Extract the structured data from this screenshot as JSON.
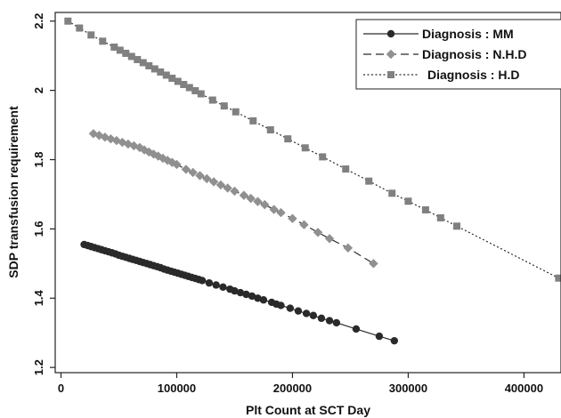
{
  "chart_data": {
    "type": "line",
    "title": "",
    "xlabel": "Plt Count at SCT Day",
    "ylabel": "SDP transfusion requirement",
    "xlim": [
      -5000,
      432000
    ],
    "ylim": [
      1.185,
      2.225
    ],
    "x_ticks": [
      0,
      100000,
      200000,
      300000,
      400000
    ],
    "x_tick_labels": [
      "0",
      "100000",
      "200000",
      "300000",
      "400000"
    ],
    "y_ticks": [
      1.2,
      1.4,
      1.6,
      1.8,
      2.0,
      2.2
    ],
    "y_tick_labels": [
      "1.2",
      "1.4",
      "1.6",
      "1.8",
      "2",
      "2.2"
    ],
    "grid": false,
    "legend_position": "top-right",
    "series": [
      {
        "name": "Diagnosis : MM",
        "marker": "circle",
        "line_style": "solid",
        "color": "#2a2a2a",
        "points": [
          [
            20000,
            1.555
          ],
          [
            23000,
            1.552
          ],
          [
            26000,
            1.549
          ],
          [
            29000,
            1.546
          ],
          [
            32000,
            1.543
          ],
          [
            35000,
            1.54
          ],
          [
            38000,
            1.537
          ],
          [
            41000,
            1.534
          ],
          [
            44000,
            1.531
          ],
          [
            47000,
            1.528
          ],
          [
            50000,
            1.524
          ],
          [
            53000,
            1.521
          ],
          [
            56000,
            1.518
          ],
          [
            59000,
            1.515
          ],
          [
            62000,
            1.512
          ],
          [
            65000,
            1.509
          ],
          [
            68000,
            1.506
          ],
          [
            71000,
            1.503
          ],
          [
            74000,
            1.5
          ],
          [
            77000,
            1.497
          ],
          [
            80000,
            1.494
          ],
          [
            83000,
            1.491
          ],
          [
            86000,
            1.488
          ],
          [
            89000,
            1.484
          ],
          [
            92000,
            1.481
          ],
          [
            95000,
            1.478
          ],
          [
            98000,
            1.475
          ],
          [
            101000,
            1.472
          ],
          [
            104000,
            1.469
          ],
          [
            107000,
            1.466
          ],
          [
            110000,
            1.463
          ],
          [
            113000,
            1.46
          ],
          [
            116000,
            1.457
          ],
          [
            119000,
            1.454
          ],
          [
            122000,
            1.451
          ],
          [
            128000,
            1.444
          ],
          [
            134000,
            1.438
          ],
          [
            140000,
            1.432
          ],
          [
            146000,
            1.426
          ],
          [
            150000,
            1.421
          ],
          [
            155000,
            1.416
          ],
          [
            160000,
            1.411
          ],
          [
            165000,
            1.406
          ],
          [
            170000,
            1.4
          ],
          [
            175000,
            1.395
          ],
          [
            182000,
            1.388
          ],
          [
            186000,
            1.383
          ],
          [
            190000,
            1.379
          ],
          [
            198000,
            1.371
          ],
          [
            205000,
            1.363
          ],
          [
            212000,
            1.356
          ],
          [
            218000,
            1.35
          ],
          [
            225000,
            1.342
          ],
          [
            232000,
            1.335
          ],
          [
            238000,
            1.329
          ],
          [
            255000,
            1.311
          ],
          [
            275000,
            1.29
          ],
          [
            288000,
            1.277
          ]
        ]
      },
      {
        "name": "Diagnosis : N.H.D",
        "marker": "diamond",
        "line_style": "dashed",
        "color": "#909090",
        "points": [
          [
            28000,
            1.875
          ],
          [
            33000,
            1.87
          ],
          [
            38000,
            1.865
          ],
          [
            43000,
            1.86
          ],
          [
            48000,
            1.855
          ],
          [
            53000,
            1.85
          ],
          [
            58000,
            1.845
          ],
          [
            63000,
            1.84
          ],
          [
            68000,
            1.835
          ],
          [
            72000,
            1.828
          ],
          [
            76000,
            1.822
          ],
          [
            80000,
            1.816
          ],
          [
            84000,
            1.81
          ],
          [
            88000,
            1.804
          ],
          [
            92000,
            1.798
          ],
          [
            96000,
            1.792
          ],
          [
            100000,
            1.786
          ],
          [
            108000,
            1.772
          ],
          [
            114000,
            1.763
          ],
          [
            120000,
            1.754
          ],
          [
            126000,
            1.745
          ],
          [
            132000,
            1.736
          ],
          [
            138000,
            1.727
          ],
          [
            144000,
            1.718
          ],
          [
            150000,
            1.709
          ],
          [
            158000,
            1.697
          ],
          [
            164000,
            1.688
          ],
          [
            170000,
            1.679
          ],
          [
            176000,
            1.67
          ],
          [
            184000,
            1.656
          ],
          [
            190000,
            1.647
          ],
          [
            200000,
            1.63
          ],
          [
            210000,
            1.612
          ],
          [
            222000,
            1.59
          ],
          [
            232000,
            1.572
          ],
          [
            248000,
            1.545
          ],
          [
            270000,
            1.5
          ]
        ]
      },
      {
        "name": "Diagnosis : H.D",
        "marker": "square",
        "line_style": "dotted",
        "color": "#808080",
        "points": [
          [
            6000,
            2.2
          ],
          [
            16000,
            2.18
          ],
          [
            26000,
            2.16
          ],
          [
            36000,
            2.142
          ],
          [
            46000,
            2.125
          ],
          [
            51000,
            2.116
          ],
          [
            56000,
            2.107
          ],
          [
            61000,
            2.098
          ],
          [
            66000,
            2.089
          ],
          [
            71000,
            2.08
          ],
          [
            76000,
            2.071
          ],
          [
            81000,
            2.062
          ],
          [
            86000,
            2.053
          ],
          [
            91000,
            2.044
          ],
          [
            96000,
            2.035
          ],
          [
            101000,
            2.026
          ],
          [
            106000,
            2.017
          ],
          [
            111000,
            2.008
          ],
          [
            116000,
            1.999
          ],
          [
            121000,
            1.99
          ],
          [
            131000,
            1.972
          ],
          [
            141000,
            1.955
          ],
          [
            151000,
            1.938
          ],
          [
            166000,
            1.912
          ],
          [
            181000,
            1.886
          ],
          [
            196000,
            1.86
          ],
          [
            211000,
            1.834
          ],
          [
            226000,
            1.808
          ],
          [
            246000,
            1.773
          ],
          [
            266000,
            1.738
          ],
          [
            286000,
            1.703
          ],
          [
            300000,
            1.68
          ],
          [
            315000,
            1.655
          ],
          [
            328000,
            1.632
          ],
          [
            342000,
            1.608
          ],
          [
            430000,
            1.458
          ]
        ]
      }
    ]
  }
}
